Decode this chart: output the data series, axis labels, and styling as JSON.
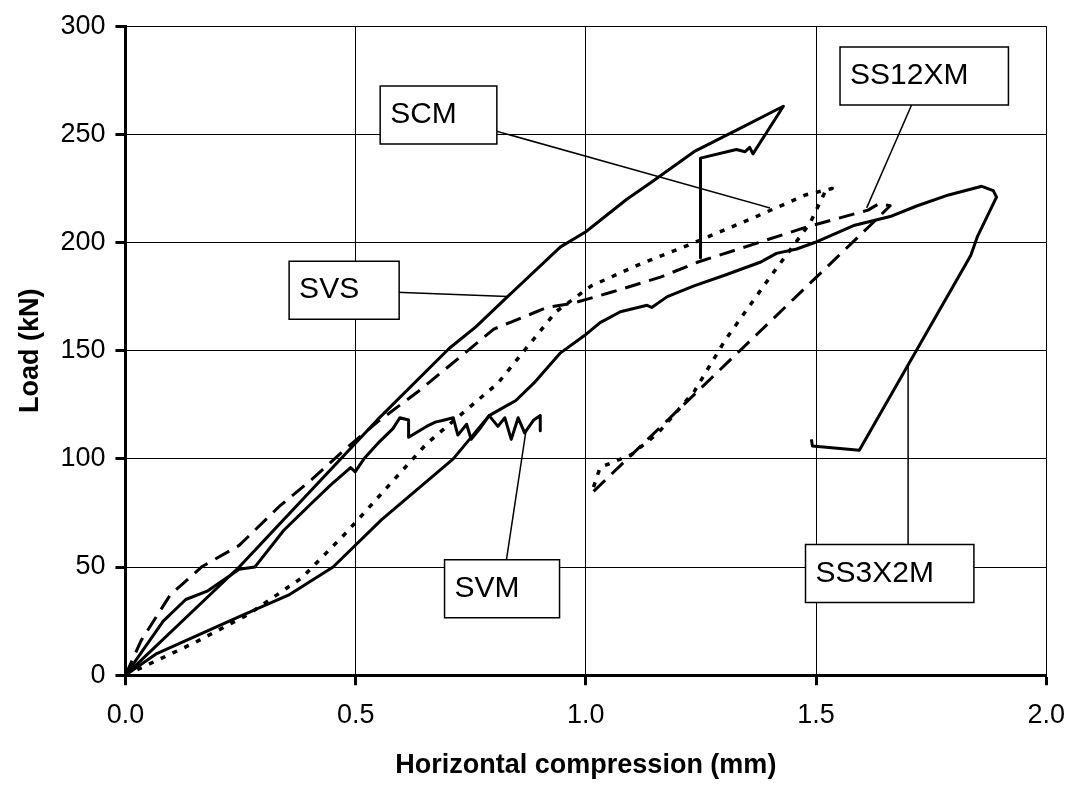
{
  "chart_data": {
    "type": "line",
    "xlabel": "Horizontal compression (mm)",
    "ylabel": "Load (kN)",
    "xlim": [
      0,
      2
    ],
    "xticks": [
      {
        "value": 0,
        "label": "0.0"
      },
      {
        "value": 0.5,
        "label": "0.5"
      },
      {
        "value": 1,
        "label": "1.0"
      },
      {
        "value": 1.5,
        "label": "1.5"
      },
      {
        "value": 2,
        "label": "2.0"
      }
    ],
    "ylim": [
      0,
      300
    ],
    "yticks": [
      0,
      50,
      100,
      150,
      200,
      250,
      300
    ],
    "grid": true,
    "legend": false,
    "marker": "none",
    "annotations": [
      {
        "text": "SVS",
        "x": 0.83,
        "y": 175
      },
      {
        "text": "SVM",
        "x": 0.87,
        "y": 113
      },
      {
        "text": "SS3X2M",
        "x": 1.7,
        "y": 143
      },
      {
        "text": "SCM",
        "x": 1.4,
        "y": 216
      },
      {
        "text": "SS12XM",
        "x": 1.61,
        "y": 216
      }
    ],
    "series": [
      {
        "color": "#000000",
        "line_style": "solid",
        "x": [
          0,
          0.247,
          0.547,
          0.703,
          0.761,
          0.83,
          0.945,
          1.0,
          1.089,
          1.143,
          1.235,
          1.337,
          1.429,
          1.363,
          1.356,
          1.346,
          1.327,
          1.249,
          1.249
        ],
        "values": [
          0,
          50,
          118,
          151,
          161,
          175,
          198,
          205,
          220,
          228,
          242,
          253,
          263,
          241,
          244,
          242,
          243,
          239,
          193
        ]
      },
      {
        "color": "#000000",
        "line_style": "solid",
        "x": [
          0,
          0.082,
          0.131,
          0.179,
          0.247,
          0.281,
          0.344,
          0.402,
          0.446,
          0.489,
          0.499,
          0.518,
          0.552,
          0.581,
          0.596,
          0.615,
          0.615,
          0.654,
          0.673,
          0.693,
          0.712,
          0.722,
          0.741,
          0.751,
          0.77,
          0.79,
          0.809,
          0.824,
          0.838,
          0.853,
          0.867,
          0.887,
          0.901,
          0.901
        ],
        "values": [
          0,
          25,
          35,
          39,
          49,
          50,
          67,
          79,
          88,
          96,
          94,
          100,
          108,
          114,
          119,
          118,
          110,
          115,
          117,
          118,
          119,
          111,
          116,
          109,
          114,
          120,
          115,
          119,
          109,
          119,
          112,
          118,
          120,
          113
        ]
      },
      {
        "color": "#000000",
        "line_style": "solid",
        "x": [
          0,
          0.068,
          0.257,
          0.354,
          0.451,
          0.557,
          0.712,
          0.79,
          0.848,
          0.887,
          0.945,
          0.997,
          1.031,
          1.075,
          1.133,
          1.143,
          1.177,
          1.235,
          1.303,
          1.38,
          1.414,
          1.458,
          1.497,
          1.584,
          1.661,
          1.72,
          1.788,
          1.86,
          1.885,
          1.892,
          1.851,
          1.836,
          1.594,
          1.492,
          1.49
        ],
        "values": [
          0,
          10,
          28,
          37,
          50,
          72,
          100,
          120,
          127,
          135,
          149,
          157,
          163,
          168,
          171,
          170,
          175,
          180,
          185,
          191,
          195,
          197,
          200,
          208,
          212,
          217,
          222,
          226,
          224,
          221,
          203,
          194,
          104,
          106,
          109
        ]
      },
      {
        "color": "#000000",
        "line_style": "dotted",
        "x": [
          0,
          0.15,
          0.266,
          0.383,
          0.48,
          0.654,
          0.809,
          0.935,
          1.012,
          1.118,
          1.225,
          1.37,
          1.477,
          1.535,
          1.521,
          1.487,
          1.4,
          1.303,
          1.235,
          1.157,
          1.099,
          1.031,
          1.012
        ],
        "values": [
          0,
          15,
          28,
          45,
          66,
          107,
          135,
          168,
          180,
          190,
          199,
          212,
          222,
          225,
          224,
          209,
          184,
          155,
          131,
          112,
          102,
          96,
          84
        ]
      },
      {
        "color": "#000000",
        "line_style": "dashed",
        "x": [
          0,
          0.034,
          0.097,
          0.165,
          0.247,
          0.334,
          0.402,
          0.48,
          0.547,
          0.635,
          0.732,
          0.8,
          0.916,
          0.973,
          1.055,
          1.162,
          1.244,
          1.39,
          1.477,
          1.613,
          1.637,
          1.661,
          1.618,
          1.012
        ],
        "values": [
          0,
          16,
          37,
          50,
          60,
          78,
          90,
          105,
          117,
          131,
          148,
          160,
          170,
          172,
          177,
          184,
          191,
          201,
          207,
          215,
          218,
          217,
          208,
          84
        ]
      }
    ]
  }
}
